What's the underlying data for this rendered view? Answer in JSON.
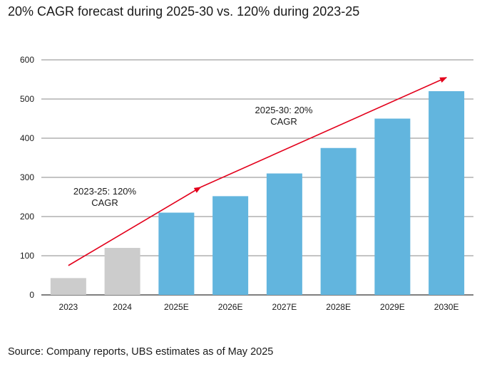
{
  "chart_data": {
    "type": "bar",
    "title": "20% CAGR forecast during 2025-30 vs. 120% during 2023-25",
    "source": "Source: Company reports, UBS estimates as of May 2025",
    "categories": [
      "2023",
      "2024",
      "2025E",
      "2026E",
      "2027E",
      "2028E",
      "2029E",
      "2030E"
    ],
    "values": [
      43,
      120,
      210,
      252,
      310,
      375,
      450,
      520
    ],
    "bar_colors": [
      "#cccccc",
      "#cccccc",
      "#62b5de",
      "#62b5de",
      "#62b5de",
      "#62b5de",
      "#62b5de",
      "#62b5de"
    ],
    "ylim": [
      0,
      600
    ],
    "yticks": [
      0,
      100,
      200,
      300,
      400,
      500,
      600
    ],
    "grid": true,
    "arrow_color": "#e3001b",
    "annotations": [
      {
        "lines": [
          "2023-25: 120%",
          "CAGR"
        ],
        "arrow_from": {
          "x": 0,
          "y": 75
        },
        "arrow_to": {
          "x": 2.45,
          "y": 275
        }
      },
      {
        "lines": [
          "2025-30: 20%",
          "CAGR"
        ],
        "arrow_from": {
          "x": 2.45,
          "y": 275
        },
        "arrow_to": {
          "x": 7.0,
          "y": 555
        }
      }
    ]
  }
}
